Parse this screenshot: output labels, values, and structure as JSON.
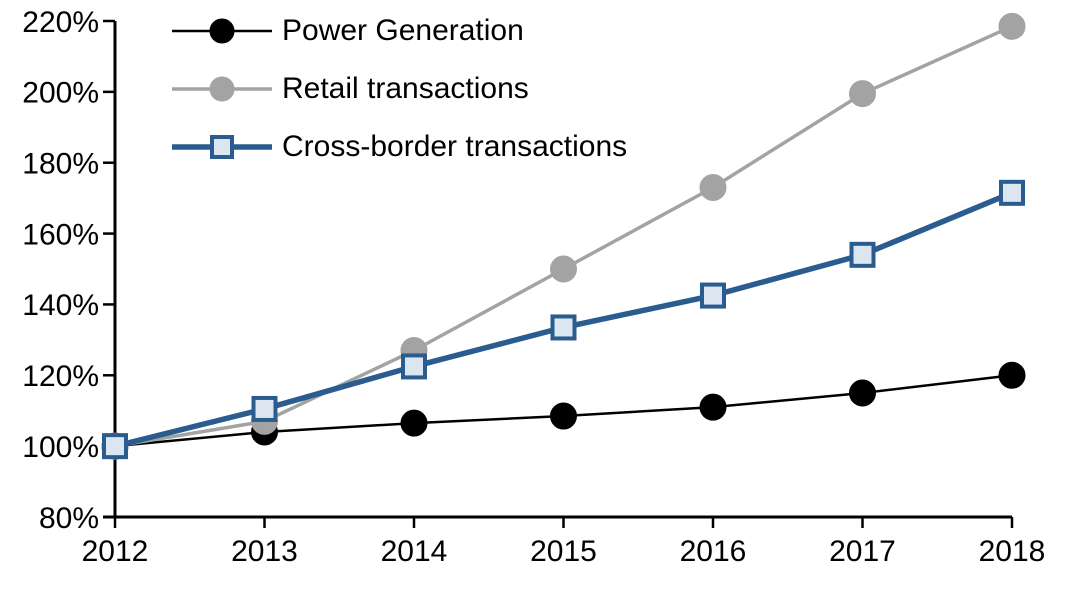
{
  "chart_data": {
    "type": "line",
    "title": "",
    "xlabel": "",
    "ylabel": "",
    "x": [
      2012,
      2013,
      2014,
      2015,
      2016,
      2017,
      2018
    ],
    "xtick_labels": [
      "2012",
      "2013",
      "2014",
      "2015",
      "2016",
      "2017",
      "2018"
    ],
    "ylim": [
      80,
      220
    ],
    "ytick_step": 20,
    "ytick_labels": [
      "80%",
      "100%",
      "120%",
      "140%",
      "160%",
      "180%",
      "200%",
      "220%"
    ],
    "grid": false,
    "legend_position": "top-left",
    "axis_color": "#000000",
    "series": [
      {
        "name": "Power Generation",
        "values": [
          100,
          104,
          106.5,
          108.5,
          111,
          115,
          120
        ],
        "color": "#000000",
        "line_width": 2.5,
        "marker": "circle",
        "marker_fill": "#000000",
        "marker_size": 13
      },
      {
        "name": "Retail transactions",
        "values": [
          100,
          107,
          127,
          150,
          173,
          199.5,
          218.5
        ],
        "color": "#a3a3a3",
        "line_width": 3.5,
        "marker": "circle",
        "marker_fill": "#a3a3a3",
        "marker_size": 13
      },
      {
        "name": "Cross-border transactions",
        "values": [
          100,
          110.5,
          122.5,
          133.5,
          142.5,
          154,
          171.5
        ],
        "color": "#2a5c8f",
        "line_width": 5.5,
        "marker": "square",
        "marker_fill": "#dce6f1",
        "marker_size": 13
      }
    ]
  }
}
